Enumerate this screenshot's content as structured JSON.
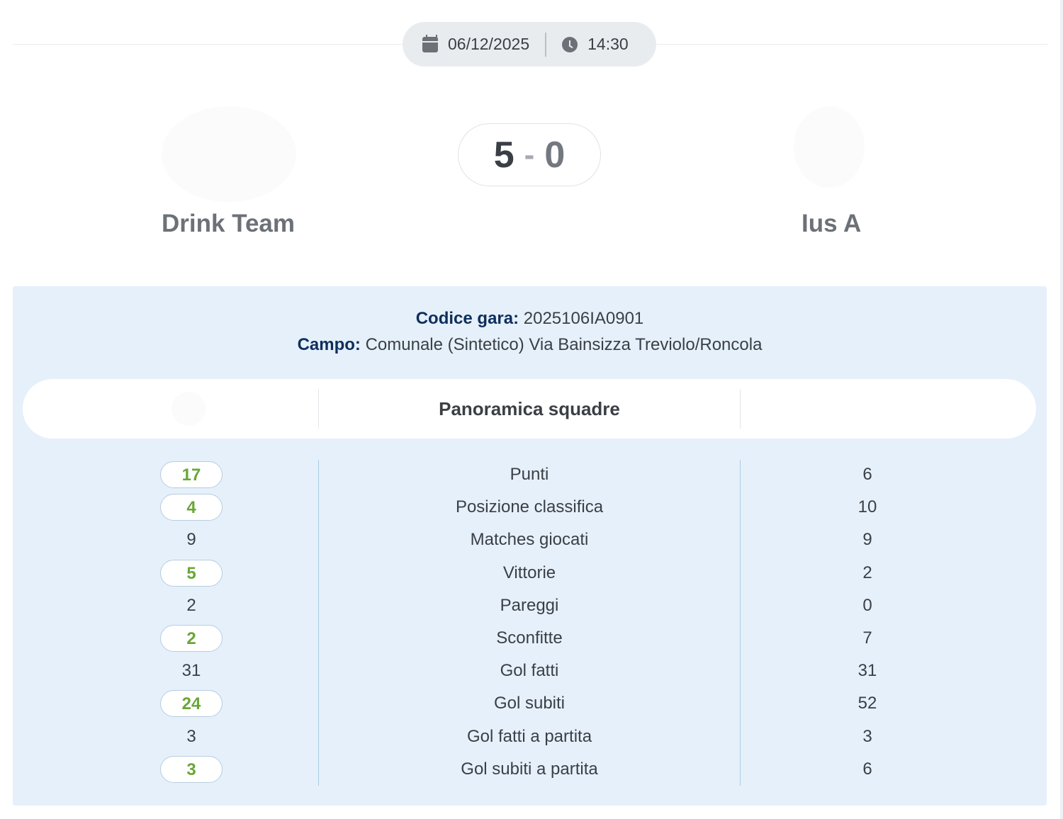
{
  "match": {
    "date": "06/12/2025",
    "time": "14:30",
    "score_home": "5",
    "score_separator": "-",
    "score_away": "0",
    "home_team": "Drink Team",
    "away_team": "Ius A"
  },
  "info": {
    "code_label": "Codice gara:",
    "code_value": "2025106IA0901",
    "field_label": "Campo:",
    "field_value": "Comunale (Sintetico) Via Bainsizza Treviolo/Roncola"
  },
  "overview": {
    "title": "Panoramica squadre",
    "rows": [
      {
        "label": "Punti",
        "home": "17",
        "away": "6",
        "home_best": true
      },
      {
        "label": "Posizione classifica",
        "home": "4",
        "away": "10",
        "home_best": true
      },
      {
        "label": "Matches giocati",
        "home": "9",
        "away": "9",
        "home_best": false
      },
      {
        "label": "Vittorie",
        "home": "5",
        "away": "2",
        "home_best": true
      },
      {
        "label": "Pareggi",
        "home": "2",
        "away": "0",
        "home_best": false
      },
      {
        "label": "Sconfitte",
        "home": "2",
        "away": "7",
        "home_best": true
      },
      {
        "label": "Gol fatti",
        "home": "31",
        "away": "31",
        "home_best": false
      },
      {
        "label": "Gol subiti",
        "home": "24",
        "away": "52",
        "home_best": true
      },
      {
        "label": "Gol fatti a partita",
        "home": "3",
        "away": "3",
        "home_best": false
      },
      {
        "label": "Gol subiti a partita",
        "home": "3",
        "away": "6",
        "home_best": true
      }
    ]
  },
  "icons": {
    "date": "calendar-icon",
    "time": "clock-icon"
  },
  "colors": {
    "panel_bg": "#e6f0fb",
    "best_value": "#6aa637",
    "label_key": "#0d2f5c"
  }
}
